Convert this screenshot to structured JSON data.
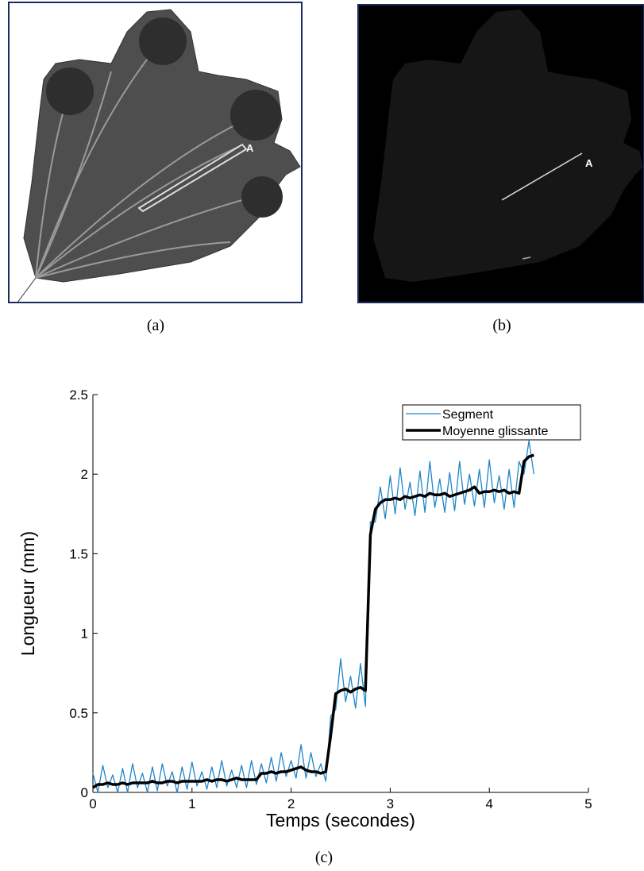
{
  "panels": [
    {
      "caption": "(a)",
      "marker": "A"
    },
    {
      "caption": "(b)",
      "marker": "A"
    }
  ],
  "chart_caption": "(c)",
  "chart_data": {
    "type": "line",
    "xlabel": "Temps (secondes)",
    "ylabel": "Longueur (mm)",
    "xlim": [
      0,
      5
    ],
    "xticks": [
      0,
      1,
      2,
      3,
      4,
      5
    ],
    "ylim": [
      0,
      2.5
    ],
    "yticks": [
      0,
      0.5,
      1,
      1.5,
      2,
      2.5
    ],
    "legend": "northeast",
    "x": [
      0,
      0.05,
      0.1,
      0.15,
      0.2,
      0.25,
      0.3,
      0.35,
      0.4,
      0.45,
      0.5,
      0.55,
      0.6,
      0.65,
      0.7,
      0.75,
      0.8,
      0.85,
      0.9,
      0.95,
      1,
      1.05,
      1.1,
      1.15,
      1.2,
      1.25,
      1.3,
      1.35,
      1.4,
      1.45,
      1.5,
      1.55,
      1.6,
      1.65,
      1.7,
      1.75,
      1.8,
      1.85,
      1.9,
      1.95,
      2,
      2.05,
      2.1,
      2.15,
      2.2,
      2.25,
      2.3,
      2.35,
      2.4,
      2.45,
      2.5,
      2.55,
      2.6,
      2.65,
      2.7,
      2.75,
      2.8,
      2.85,
      2.9,
      2.95,
      3,
      3.05,
      3.1,
      3.15,
      3.2,
      3.25,
      3.3,
      3.35,
      3.4,
      3.45,
      3.5,
      3.55,
      3.6,
      3.65,
      3.7,
      3.75,
      3.8,
      3.85,
      3.9,
      3.95,
      4,
      4.05,
      4.1,
      4.15,
      4.2,
      4.25,
      4.3,
      4.35,
      4.4,
      4.45
    ],
    "series": [
      {
        "name": "Segment",
        "color": "#1f86c8",
        "values": [
          0.12,
          0,
          0.17,
          0.03,
          0.11,
          0,
          0.15,
          0,
          0.18,
          0.03,
          0.12,
          0,
          0.16,
          0.01,
          0.18,
          0.04,
          0.13,
          0,
          0.16,
          0.02,
          0.19,
          0.04,
          0.13,
          0.02,
          0.16,
          0.03,
          0.2,
          0.04,
          0.14,
          0.03,
          0.17,
          0.03,
          0.2,
          0.05,
          0.18,
          0.06,
          0.22,
          0.07,
          0.25,
          0.1,
          0.2,
          0.09,
          0.3,
          0.09,
          0.25,
          0.1,
          0.18,
          0.07,
          0.48,
          0.52,
          0.84,
          0.57,
          0.73,
          0.53,
          0.81,
          0.54,
          1.7,
          1.7,
          1.92,
          1.72,
          1.99,
          1.75,
          2.04,
          1.78,
          1.95,
          1.74,
          2.02,
          1.76,
          2.08,
          1.79,
          1.97,
          1.76,
          2.01,
          1.77,
          2.08,
          1.81,
          2,
          1.8,
          2.03,
          1.79,
          2.09,
          1.82,
          1.99,
          1.78,
          2.03,
          1.79,
          2.08,
          2,
          2.21,
          2
        ]
      },
      {
        "name": "Moyenne glissante",
        "color": "#000000",
        "values": [
          0.03,
          0.05,
          0.05,
          0.06,
          0.05,
          0.05,
          0.06,
          0.05,
          0.06,
          0.06,
          0.06,
          0.06,
          0.07,
          0.06,
          0.06,
          0.07,
          0.07,
          0.06,
          0.07,
          0.07,
          0.07,
          0.07,
          0.07,
          0.08,
          0.07,
          0.08,
          0.08,
          0.07,
          0.08,
          0.09,
          0.08,
          0.08,
          0.08,
          0.08,
          0.12,
          0.12,
          0.13,
          0.12,
          0.13,
          0.13,
          0.14,
          0.15,
          0.16,
          0.14,
          0.13,
          0.13,
          0.12,
          0.13,
          0.36,
          0.62,
          0.64,
          0.65,
          0.63,
          0.65,
          0.66,
          0.64,
          1.62,
          1.78,
          1.82,
          1.84,
          1.84,
          1.85,
          1.84,
          1.86,
          1.85,
          1.86,
          1.87,
          1.86,
          1.88,
          1.87,
          1.87,
          1.88,
          1.86,
          1.87,
          1.88,
          1.89,
          1.9,
          1.92,
          1.88,
          1.89,
          1.89,
          1.9,
          1.89,
          1.9,
          1.88,
          1.89,
          1.88,
          2.08,
          2.11,
          2.12
        ]
      }
    ]
  }
}
